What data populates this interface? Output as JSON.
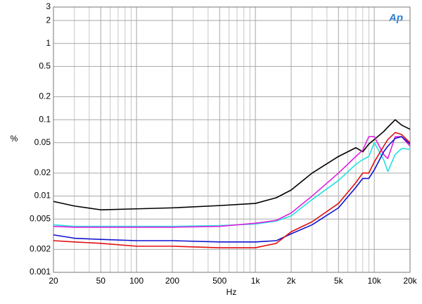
{
  "chart_data": {
    "type": "line",
    "logo": "Ap",
    "ylabel": "%",
    "xlabel": "Hz",
    "xlog": true,
    "ylog": true,
    "grid": true,
    "xlim": [
      20,
      20000
    ],
    "ylim": [
      0.001,
      3
    ],
    "xticks": [
      20,
      50,
      100,
      200,
      500,
      {
        "value": 1000,
        "label": "1k"
      },
      {
        "value": 2000,
        "label": "2k"
      },
      {
        "value": 5000,
        "label": "5k"
      },
      {
        "value": 10000,
        "label": "10k"
      },
      {
        "value": 20000,
        "label": "20k"
      }
    ],
    "xminor": [
      30,
      40,
      60,
      70,
      80,
      90,
      300,
      400,
      600,
      700,
      800,
      900,
      3000,
      4000,
      6000,
      7000,
      8000,
      9000
    ],
    "yticks": [
      3,
      2,
      1,
      0.5,
      0.2,
      0.1,
      0.05,
      0.02,
      0.01,
      0.005,
      0.002,
      0.001
    ],
    "x": [
      20,
      30,
      50,
      100,
      200,
      500,
      1000,
      1500,
      2000,
      3000,
      5000,
      7000,
      8000,
      9000,
      10000,
      12000,
      13000,
      15000,
      17000,
      20000
    ],
    "series": [
      {
        "color": "#000000",
        "values": [
          0.0085,
          0.0074,
          0.0066,
          0.0068,
          0.007,
          0.0075,
          0.008,
          0.0095,
          0.012,
          0.02,
          0.033,
          0.043,
          0.038,
          0.048,
          0.055,
          0.07,
          0.08,
          0.1,
          0.085,
          0.075
        ]
      },
      {
        "color": "#22e0e0",
        "values": [
          0.0042,
          0.004,
          0.004,
          0.004,
          0.004,
          0.0041,
          0.0043,
          0.0047,
          0.0055,
          0.009,
          0.016,
          0.026,
          0.03,
          0.033,
          0.05,
          0.03,
          0.021,
          0.035,
          0.042,
          0.041
        ]
      },
      {
        "color": "#e020e0",
        "values": [
          0.004,
          0.0039,
          0.0039,
          0.0039,
          0.0039,
          0.004,
          0.0044,
          0.0048,
          0.006,
          0.01,
          0.02,
          0.033,
          0.04,
          0.06,
          0.06,
          0.035,
          0.031,
          0.06,
          0.06,
          0.045
        ]
      },
      {
        "color": "#1010d0",
        "values": [
          0.0031,
          0.0028,
          0.0027,
          0.0026,
          0.0026,
          0.0025,
          0.0025,
          0.0026,
          0.0032,
          0.0042,
          0.007,
          0.013,
          0.017,
          0.017,
          0.022,
          0.038,
          0.045,
          0.057,
          0.06,
          0.048
        ]
      },
      {
        "color": "#e01010",
        "values": [
          0.0026,
          0.0025,
          0.0024,
          0.0022,
          0.0022,
          0.0021,
          0.0021,
          0.0024,
          0.0034,
          0.0046,
          0.008,
          0.015,
          0.02,
          0.02,
          0.028,
          0.045,
          0.055,
          0.068,
          0.064,
          0.05
        ]
      }
    ]
  }
}
